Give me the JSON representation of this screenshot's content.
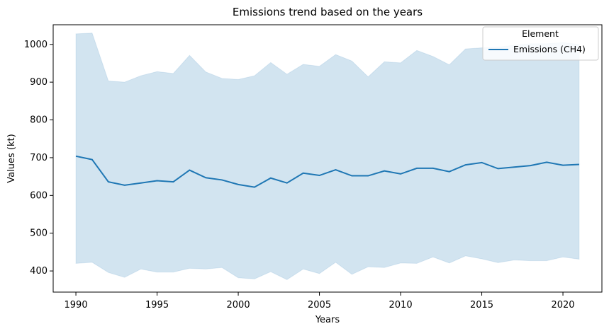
{
  "chart_data": {
    "type": "line",
    "title": "Emissions trend based on the years",
    "xlabel": "Years",
    "ylabel": "Values (kt)",
    "xlim": [
      1988.6,
      2022.4
    ],
    "ylim": [
      344,
      1052
    ],
    "xticks": [
      1990,
      1995,
      2000,
      2005,
      2010,
      2015,
      2020
    ],
    "yticks": [
      400,
      500,
      600,
      700,
      800,
      900,
      1000
    ],
    "grid": false,
    "legend": {
      "title": "Element",
      "placement": "top-right"
    },
    "x": [
      1990,
      1991,
      1992,
      1993,
      1994,
      1995,
      1996,
      1997,
      1998,
      1999,
      2000,
      2001,
      2002,
      2003,
      2004,
      2005,
      2006,
      2007,
      2008,
      2009,
      2010,
      2011,
      2012,
      2013,
      2014,
      2015,
      2016,
      2017,
      2018,
      2019,
      2020,
      2021
    ],
    "series": [
      {
        "name": "Emissions (CH4)",
        "color": "#1f77b4",
        "band_color": "#1f77b4",
        "values": [
          704,
          695,
          636,
          627,
          633,
          639,
          636,
          667,
          647,
          641,
          629,
          622,
          646,
          633,
          659,
          653,
          668,
          652,
          652,
          665,
          657,
          672,
          672,
          663,
          681,
          687,
          671,
          675,
          679,
          688,
          680,
          682
        ],
        "upper": [
          1028,
          1030,
          903,
          900,
          917,
          928,
          923,
          971,
          927,
          910,
          907,
          917,
          952,
          921,
          947,
          942,
          973,
          956,
          914,
          954,
          951,
          984,
          968,
          946,
          988,
          991,
          993,
          998,
          1002,
          1002,
          1005,
          1000
        ],
        "lower": [
          420,
          423,
          396,
          383,
          405,
          397,
          397,
          407,
          405,
          409,
          382,
          379,
          398,
          377,
          405,
          393,
          423,
          391,
          411,
          409,
          421,
          420,
          437,
          421,
          440,
          432,
          422,
          429,
          427,
          427,
          437,
          431
        ]
      }
    ]
  }
}
